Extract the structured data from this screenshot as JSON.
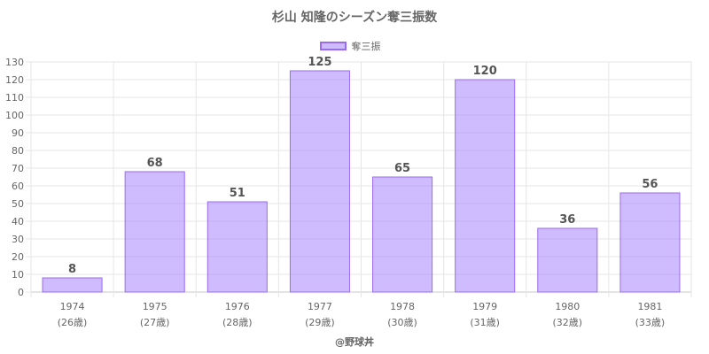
{
  "chart_data": {
    "type": "bar",
    "title": "杉山 知隆のシーズン奪三振数",
    "categories": [
      "1974",
      "1975",
      "1976",
      "1977",
      "1978",
      "1979",
      "1980",
      "1981"
    ],
    "sub_labels": [
      "(26歳)",
      "(27歳)",
      "(28歳)",
      "(29歳)",
      "(30歳)",
      "(31歳)",
      "(32歳)",
      "(33歳)"
    ],
    "series": [
      {
        "name": "奪三振",
        "values": [
          8,
          68,
          51,
          125,
          65,
          120,
          36,
          56
        ]
      }
    ],
    "ylim": [
      0,
      130
    ],
    "y_ticks": [
      0,
      10,
      20,
      30,
      40,
      50,
      60,
      70,
      80,
      90,
      100,
      110,
      120,
      130
    ],
    "grid": true,
    "legend_position": "top-center",
    "bar_fill": "rgba(160,122,255,0.5)",
    "bar_border": "#9a6af2"
  },
  "credit": "@野球丼"
}
